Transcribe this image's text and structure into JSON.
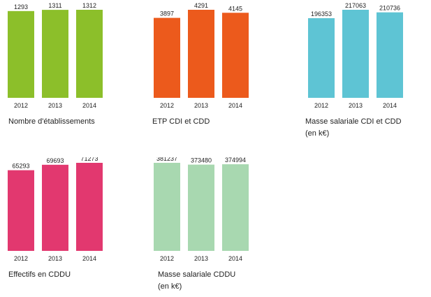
{
  "chart_data": [
    {
      "type": "bar",
      "title": "Nombre d'établissements",
      "subtitle": "",
      "categories": [
        "2012",
        "2013",
        "2014"
      ],
      "values": [
        1293,
        1311,
        1312
      ],
      "color": "#8cbf2a"
    },
    {
      "type": "bar",
      "title": "ETP CDI et CDD",
      "subtitle": "",
      "categories": [
        "2012",
        "2013",
        "2014"
      ],
      "values": [
        3897,
        4291,
        4145
      ],
      "color": "#ec5a1c"
    },
    {
      "type": "bar",
      "title": "Masse salariale CDI et CDD",
      "subtitle": "(en k€)",
      "categories": [
        "2012",
        "2013",
        "2014"
      ],
      "values": [
        196353,
        217063,
        210736
      ],
      "color": "#5ec4d4"
    },
    {
      "type": "bar",
      "title": "Effectifs en CDDU",
      "subtitle": "",
      "categories": [
        "2012",
        "2013",
        "2014"
      ],
      "values": [
        65293,
        69693,
        71273
      ],
      "color": "#e2386f"
    },
    {
      "type": "bar",
      "title": "Masse salariale CDDU",
      "subtitle": "(en k€)",
      "categories": [
        "2012",
        "2013",
        "2014"
      ],
      "values": [
        381237,
        373480,
        374994
      ],
      "color": "#a8d8b0"
    }
  ]
}
